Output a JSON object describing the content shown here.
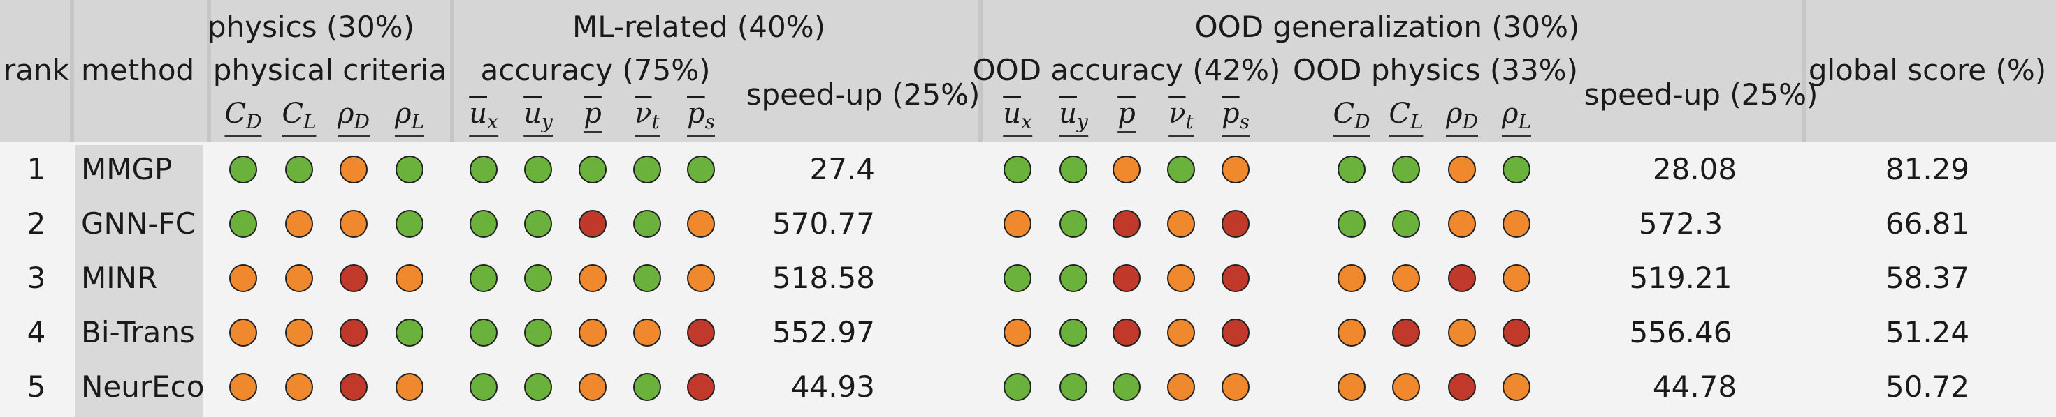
{
  "headers": {
    "rank": "rank",
    "method": "method",
    "physics": "physics (30%)",
    "physical_criteria": "physical criteria",
    "ml_related": "ML-related (40%)",
    "accuracy": "accuracy (75%)",
    "speedup": "speed-up (25%)",
    "ood_generalization": "OOD generalization (30%)",
    "ood_accuracy": "OOD accuracy (42%)",
    "ood_physics": "OOD physics (33%)",
    "ood_speedup": "speed-up (25%)",
    "global_score": "global score (%)"
  },
  "symbols": {
    "physics": [
      {
        "base": "C",
        "sub": "D"
      },
      {
        "base": "C",
        "sub": "L"
      },
      {
        "base": "ρ",
        "sub": "D"
      },
      {
        "base": "ρ",
        "sub": "L"
      }
    ],
    "accuracy": [
      {
        "base": "u",
        "sub": "x"
      },
      {
        "base": "u",
        "sub": "y"
      },
      {
        "base": "p",
        "sub": ""
      },
      {
        "base": "ν",
        "sub": "t"
      },
      {
        "base": "p",
        "sub": "s"
      }
    ]
  },
  "colors": {
    "green": "#6ab23c",
    "orange": "#f0882e",
    "red": "#c0392b"
  },
  "rows": [
    {
      "rank": "1",
      "method": "MMGP",
      "physics": [
        "green",
        "green",
        "orange",
        "green"
      ],
      "accuracy": [
        "green",
        "green",
        "green",
        "green",
        "green"
      ],
      "speedup": "27.4",
      "ood_accuracy": [
        "green",
        "green",
        "orange",
        "green",
        "orange"
      ],
      "ood_physics": [
        "green",
        "green",
        "orange",
        "green"
      ],
      "ood_speedup": "28.08",
      "global_score": "81.29"
    },
    {
      "rank": "2",
      "method": "GNN-FC",
      "physics": [
        "green",
        "orange",
        "orange",
        "green"
      ],
      "accuracy": [
        "green",
        "green",
        "red",
        "green",
        "orange"
      ],
      "speedup": "570.77",
      "ood_accuracy": [
        "orange",
        "green",
        "red",
        "orange",
        "red"
      ],
      "ood_physics": [
        "green",
        "green",
        "orange",
        "orange"
      ],
      "ood_speedup": "572.3",
      "global_score": "66.81"
    },
    {
      "rank": "3",
      "method": "MINR",
      "physics": [
        "orange",
        "orange",
        "red",
        "orange"
      ],
      "accuracy": [
        "green",
        "green",
        "orange",
        "green",
        "orange"
      ],
      "speedup": "518.58",
      "ood_accuracy": [
        "green",
        "green",
        "red",
        "orange",
        "red"
      ],
      "ood_physics": [
        "orange",
        "orange",
        "red",
        "orange"
      ],
      "ood_speedup": "519.21",
      "global_score": "58.37"
    },
    {
      "rank": "4",
      "method": "Bi-Trans",
      "physics": [
        "orange",
        "orange",
        "red",
        "green"
      ],
      "accuracy": [
        "green",
        "green",
        "orange",
        "orange",
        "red"
      ],
      "speedup": "552.97",
      "ood_accuracy": [
        "orange",
        "green",
        "red",
        "orange",
        "red"
      ],
      "ood_physics": [
        "orange",
        "red",
        "orange",
        "red"
      ],
      "ood_speedup": "556.46",
      "global_score": "51.24"
    },
    {
      "rank": "5",
      "method": "NeurEco",
      "physics": [
        "orange",
        "orange",
        "red",
        "orange"
      ],
      "accuracy": [
        "green",
        "green",
        "orange",
        "green",
        "red"
      ],
      "speedup": "44.93",
      "ood_accuracy": [
        "green",
        "green",
        "green",
        "orange",
        "orange"
      ],
      "ood_physics": [
        "orange",
        "orange",
        "red",
        "orange"
      ],
      "ood_speedup": "44.78",
      "global_score": "50.72"
    }
  ]
}
